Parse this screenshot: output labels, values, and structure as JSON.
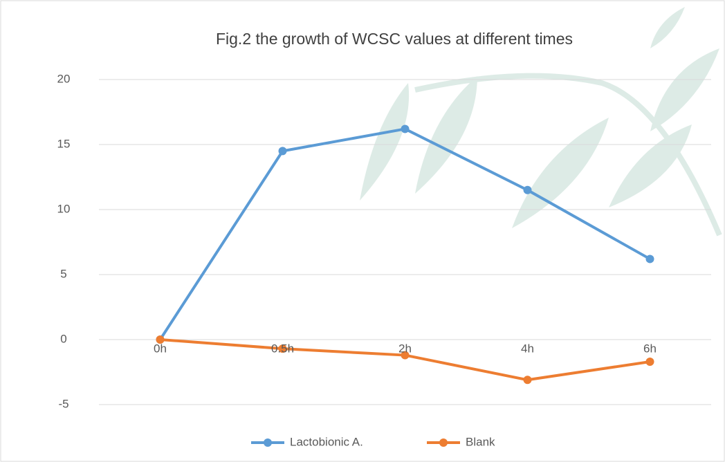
{
  "chart_data": {
    "type": "line",
    "title": "Fig.2 the growth of WCSC values at different times",
    "categories": [
      "0h",
      "0.5h",
      "2h",
      "4h",
      "6h"
    ],
    "series": [
      {
        "name": "Lactobionic A.",
        "color": "#5b9bd5",
        "values": [
          0,
          14.5,
          16.2,
          11.5,
          6.2
        ]
      },
      {
        "name": "Blank",
        "color": "#ed7d31",
        "values": [
          0,
          -0.7,
          -1.2,
          -3.1,
          -1.7
        ]
      }
    ],
    "ylim": [
      -5,
      20
    ],
    "yticks": [
      -5,
      0,
      5,
      10,
      15,
      20
    ],
    "grid": true,
    "legend": "bottom"
  }
}
